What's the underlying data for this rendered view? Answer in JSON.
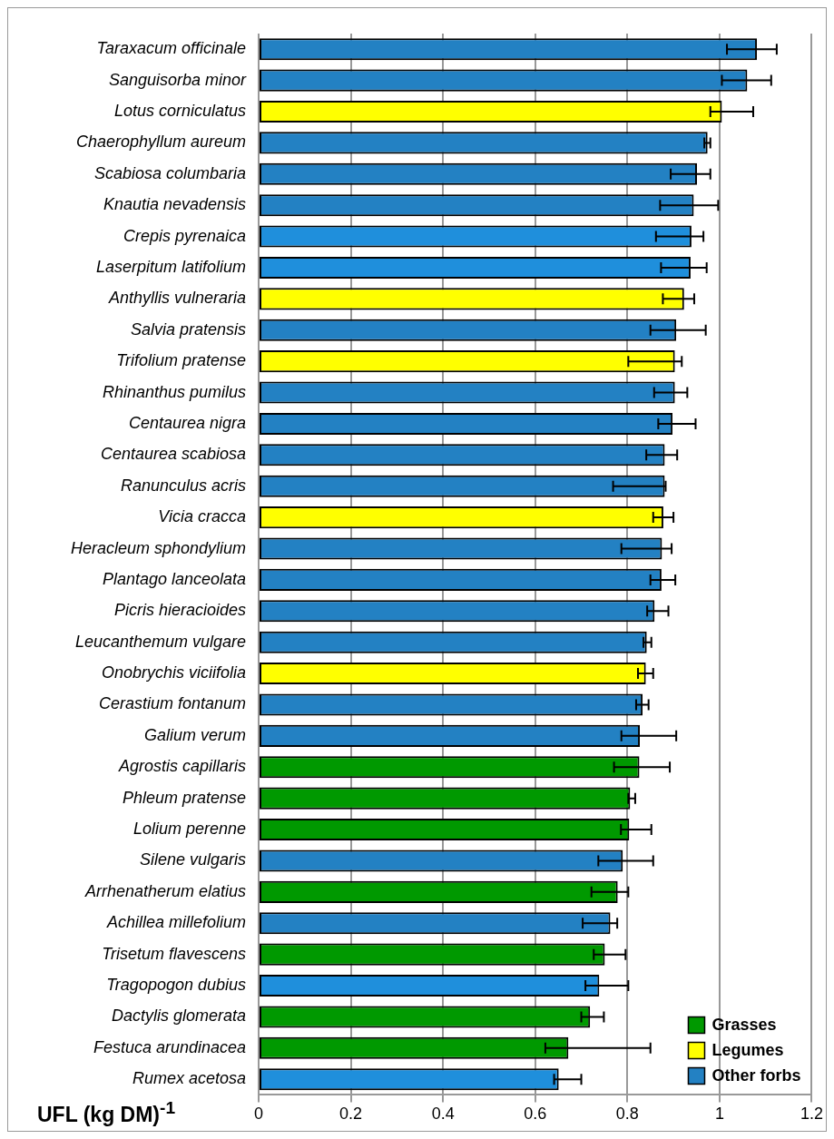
{
  "chart_data": {
    "type": "bar",
    "orientation": "horizontal",
    "xlabel": "UFL (kg DM)$^{-1}$",
    "categories": [
      "Taraxacum officinale",
      "Sanguisorba minor",
      "Lotus corniculatus",
      "Chaerophyllum aureum",
      "Scabiosa columbaria",
      "Knautia nevadensis",
      "Crepis pyrenaica",
      "Laserpitum latifolium",
      "Anthyllis vulneraria",
      "Salvia pratensis",
      "Trifolium pratense",
      "Rhinanthus pumilus",
      "Centaurea nigra",
      "Centaurea scabiosa",
      "Ranunculus acris",
      "Vicia cracca",
      "Heracleum sphondylium",
      "Plantago lanceolata",
      "Picris hieracioides",
      "Leucanthemum vulgare",
      "Onobrychis viciifolia",
      "Cerastium fontanum",
      "Galium verum",
      "Agrostis capillaris",
      "Phleum pratense",
      "Lolium perenne",
      "Silene vulgaris",
      "Arrhenatherum elatius",
      "Achillea millefolium",
      "Trisetum flavescens",
      "Tragopogon dubius",
      "Dactylis glomerata",
      "Festuca arundinacea",
      "Rumex acetosa"
    ],
    "series": [
      {
        "name": "Grasses",
        "color": "#009900",
        "values": [
          null,
          null,
          null,
          null,
          null,
          null,
          null,
          null,
          null,
          null,
          null,
          null,
          null,
          null,
          null,
          null,
          null,
          null,
          null,
          null,
          null,
          null,
          null,
          0.826,
          0.806,
          0.804,
          null,
          0.779,
          null,
          0.751,
          null,
          0.719,
          0.672,
          null
        ],
        "errors": [
          null,
          null,
          null,
          null,
          null,
          null,
          null,
          null,
          null,
          null,
          null,
          null,
          null,
          null,
          null,
          null,
          null,
          null,
          null,
          null,
          null,
          null,
          null,
          [
            0.771,
            0.892
          ],
          [
            0.802,
            0.817
          ],
          [
            0.786,
            0.852
          ],
          null,
          [
            0.722,
            0.802
          ],
          null,
          [
            0.727,
            0.796
          ],
          null,
          [
            0.7,
            0.749
          ],
          [
            0.622,
            0.85
          ],
          null
        ]
      },
      {
        "name": "Legumes",
        "color": "#ffff00",
        "values": [
          null,
          null,
          1.005,
          null,
          null,
          null,
          null,
          null,
          0.923,
          null,
          0.903,
          null,
          null,
          null,
          null,
          0.878,
          null,
          null,
          null,
          null,
          0.84,
          null,
          null,
          null,
          null,
          null,
          null,
          null,
          null,
          null,
          null,
          null,
          null,
          null
        ],
        "errors": [
          null,
          null,
          [
            0.98,
            1.073
          ],
          null,
          null,
          null,
          null,
          null,
          [
            0.877,
            0.945
          ],
          null,
          [
            0.802,
            0.918
          ],
          null,
          null,
          null,
          null,
          [
            0.856,
            0.9
          ],
          null,
          null,
          null,
          null,
          [
            0.823,
            0.856
          ],
          null,
          null,
          null,
          null,
          null,
          null,
          null,
          null,
          null,
          null,
          null,
          null,
          null
        ]
      },
      {
        "name": "Other forbs",
        "color": "#2381c3",
        "values": [
          1.081,
          1.06,
          null,
          0.974,
          0.951,
          0.944,
          0.939,
          0.937,
          null,
          0.906,
          null,
          0.903,
          0.898,
          0.881,
          0.881,
          null,
          0.875,
          0.874,
          0.859,
          0.842,
          null,
          0.833,
          0.827,
          null,
          null,
          null,
          0.79,
          null,
          0.763,
          null,
          0.739,
          null,
          null,
          0.651
        ],
        "colors": [
          "#2381c3",
          "#2381c3",
          "#2381c3",
          "#2381c3",
          "#2381c3",
          "#2381c3",
          "#1f8fdc",
          "#1f8fdc",
          "#2381c3",
          "#2381c3",
          "#2381c3",
          "#2381c3",
          "#2381c3",
          "#2381c3",
          "#2381c3",
          "#2381c3",
          "#2381c3",
          "#2381c3",
          "#2381c3",
          "#2381c3",
          "#2381c3",
          "#2381c3",
          "#2381c3",
          "#2381c3",
          "#2381c3",
          "#2381c3",
          "#2381c3",
          "#2381c3",
          "#2381c3",
          "#2381c3",
          "#1f8fdc",
          "#2381c3",
          "#2381c3",
          "#1f8fdc"
        ],
        "errors": [
          [
            1.016,
            1.124
          ],
          [
            1.005,
            1.112
          ],
          null,
          [
            0.967,
            0.98
          ],
          [
            0.894,
            0.98
          ],
          [
            0.871,
            0.997
          ],
          [
            0.862,
            0.965
          ],
          [
            0.873,
            0.972
          ],
          null,
          [
            0.85,
            0.97
          ],
          null,
          [
            0.858,
            0.93
          ],
          [
            0.867,
            0.948
          ],
          [
            0.841,
            0.908
          ],
          [
            0.769,
            0.883
          ],
          null,
          [
            0.787,
            0.896
          ],
          [
            0.85,
            0.904
          ],
          [
            0.843,
            0.889
          ],
          [
            0.835,
            0.852
          ],
          null,
          [
            0.819,
            0.846
          ],
          [
            0.787,
            0.906
          ],
          null,
          null,
          null,
          [
            0.737,
            0.856
          ],
          null,
          [
            0.703,
            0.778
          ],
          null,
          [
            0.709,
            0.802
          ],
          null,
          null,
          [
            0.641,
            0.7
          ]
        ]
      }
    ],
    "xlim": [
      0,
      1.2
    ],
    "xticks": [
      0,
      0.2,
      0.4,
      0.6,
      0.8,
      1,
      1.2
    ],
    "grid": "x",
    "legend": "bottom right"
  }
}
